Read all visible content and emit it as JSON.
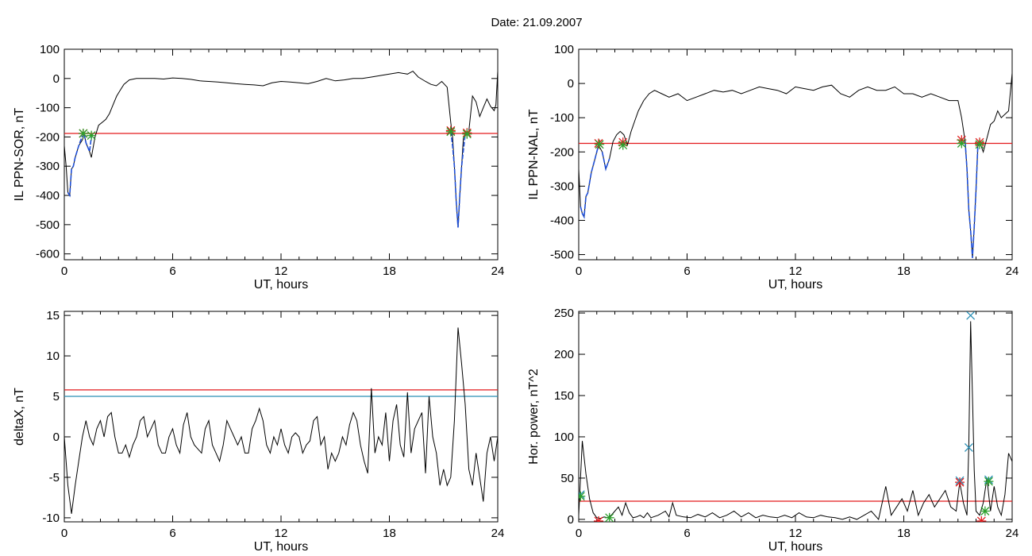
{
  "title": "Date:  21.09.2007",
  "colors": {
    "trace": "#000000",
    "red": "#e31a1c",
    "blue": "#1f4fd8",
    "cyan": "#2a8fb5",
    "green": "#2ca02c",
    "marker_blue": "#3a6fd8"
  },
  "chart_data": [
    {
      "type": "line",
      "id": "sor",
      "xlabel": "UT, hours",
      "ylabel": "IL PPN-SOR, nT",
      "xlim": [
        0,
        24
      ],
      "ylim": [
        -620,
        100
      ],
      "xticks": [
        0,
        6,
        12,
        18,
        24
      ],
      "yticks": [
        100,
        0,
        -100,
        -200,
        -300,
        -400,
        -500,
        -600
      ],
      "hlines": [
        {
          "y": -188,
          "color": "red"
        }
      ],
      "series": [
        {
          "x": [
            0,
            0.1,
            0.2,
            0.3,
            0.4,
            0.5,
            0.6,
            0.8,
            1.0,
            1.1,
            1.2,
            1.4,
            1.5,
            1.7,
            1.9,
            2.1,
            2.3,
            2.5,
            2.7,
            2.9,
            3.1,
            3.3,
            3.6,
            4.0,
            4.5,
            5.0,
            5.5,
            6.0,
            6.5,
            7.0,
            7.5,
            8.0,
            8.5,
            9.0,
            9.5,
            10.0,
            10.5,
            11.0,
            11.5,
            12.0,
            12.5,
            13.0,
            13.5,
            14.0,
            14.5,
            15.0,
            15.5,
            16.0,
            16.5,
            17.0,
            17.5,
            18.0,
            18.5,
            19.0,
            19.3,
            19.6,
            20.0,
            20.3,
            20.6,
            20.9,
            21.2,
            21.4,
            21.5,
            21.6,
            21.7,
            21.8,
            21.9,
            22.0,
            22.1,
            22.2,
            22.4,
            22.6,
            22.8,
            23.0,
            23.2,
            23.4,
            23.6,
            23.8,
            23.9,
            24.0
          ],
          "y": [
            -230,
            -300,
            -390,
            -400,
            -310,
            -300,
            -270,
            -230,
            -210,
            -190,
            -220,
            -250,
            -270,
            -200,
            -160,
            -150,
            -140,
            -120,
            -90,
            -60,
            -40,
            -20,
            -5,
            0,
            0,
            0,
            -2,
            2,
            0,
            -3,
            -8,
            -10,
            -12,
            -15,
            -18,
            -20,
            -22,
            -25,
            -15,
            -10,
            -12,
            -15,
            -18,
            -10,
            0,
            -8,
            -5,
            0,
            0,
            5,
            10,
            15,
            20,
            15,
            25,
            5,
            -10,
            -20,
            -25,
            -10,
            -30,
            -150,
            -200,
            -300,
            -420,
            -510,
            -400,
            -300,
            -200,
            -190,
            -180,
            -60,
            -80,
            -130,
            -100,
            -70,
            -95,
            -110,
            -90,
            25
          ],
          "color": "trace"
        }
      ],
      "blue_segments": [
        {
          "x": [
            0.2,
            0.3,
            0.4,
            0.5,
            0.6,
            0.8,
            1.0
          ],
          "y": [
            -390,
            -400,
            -310,
            -300,
            -270,
            -230,
            -195
          ]
        },
        {
          "x": [
            1.1,
            1.2,
            1.4,
            1.5
          ],
          "y": [
            -190,
            -220,
            -250,
            -200
          ]
        },
        {
          "x": [
            21.4,
            21.5,
            21.6,
            21.7,
            21.8,
            21.9,
            22.0,
            22.2
          ],
          "y": [
            -180,
            -230,
            -300,
            -420,
            -510,
            -400,
            -300,
            -190
          ]
        }
      ],
      "markers": [
        {
          "x": 1.05,
          "y": -188,
          "color": "red"
        },
        {
          "x": 1.05,
          "y": -188,
          "color": "green"
        },
        {
          "x": 1.5,
          "y": -195,
          "color": "green"
        },
        {
          "x": 21.4,
          "y": -178,
          "color": "red"
        },
        {
          "x": 21.4,
          "y": -182,
          "color": "green"
        },
        {
          "x": 22.3,
          "y": -186,
          "color": "red"
        },
        {
          "x": 22.3,
          "y": -190,
          "color": "green"
        }
      ]
    },
    {
      "type": "line",
      "id": "nal",
      "xlabel": "UT, hours",
      "ylabel": "IL PPN-NAL, nT",
      "xlim": [
        0,
        24
      ],
      "ylim": [
        -515,
        100
      ],
      "xticks": [
        0,
        6,
        12,
        18,
        24
      ],
      "yticks": [
        100,
        0,
        -100,
        -200,
        -300,
        -400,
        -500
      ],
      "hlines": [
        {
          "y": -175,
          "color": "red"
        }
      ],
      "series": [
        {
          "x": [
            0,
            0.1,
            0.2,
            0.3,
            0.4,
            0.5,
            0.7,
            0.9,
            1.1,
            1.3,
            1.5,
            1.7,
            1.9,
            2.1,
            2.3,
            2.5,
            2.7,
            2.9,
            3.1,
            3.3,
            3.6,
            3.9,
            4.2,
            4.6,
            5.0,
            5.5,
            6.0,
            6.5,
            7.0,
            7.5,
            8.0,
            8.5,
            9.0,
            9.5,
            10.0,
            10.5,
            11.0,
            11.5,
            12.0,
            12.5,
            13.0,
            13.5,
            14.0,
            14.5,
            15.0,
            15.5,
            16.0,
            16.5,
            17.0,
            17.5,
            18.0,
            18.5,
            19.0,
            19.5,
            20.0,
            20.5,
            21.0,
            21.2,
            21.4,
            21.5,
            21.6,
            21.7,
            21.8,
            21.9,
            22.0,
            22.1,
            22.2,
            22.4,
            22.6,
            22.8,
            23.0,
            23.2,
            23.4,
            23.6,
            23.8,
            24.0
          ],
          "y": [
            -250,
            -360,
            -380,
            -390,
            -330,
            -320,
            -260,
            -220,
            -180,
            -200,
            -250,
            -220,
            -170,
            -150,
            -140,
            -150,
            -180,
            -140,
            -110,
            -80,
            -50,
            -30,
            -20,
            -30,
            -40,
            -30,
            -50,
            -40,
            -30,
            -20,
            -25,
            -20,
            -30,
            -20,
            -10,
            -15,
            -20,
            -30,
            -10,
            -15,
            -20,
            -10,
            -5,
            -30,
            -40,
            -20,
            -10,
            -20,
            -20,
            -10,
            -30,
            -30,
            -40,
            -30,
            -40,
            -50,
            -50,
            -100,
            -170,
            -250,
            -370,
            -430,
            -510,
            -420,
            -310,
            -180,
            -170,
            -200,
            -160,
            -120,
            -110,
            -80,
            -100,
            -90,
            -80,
            30
          ],
          "color": "trace"
        }
      ],
      "blue_segments": [
        {
          "x": [
            0.1,
            0.2,
            0.3,
            0.4,
            0.5,
            0.7,
            0.9,
            1.1
          ],
          "y": [
            -360,
            -380,
            -390,
            -330,
            -320,
            -260,
            -220,
            -180
          ]
        },
        {
          "x": [
            1.3,
            1.5,
            1.7
          ],
          "y": [
            -200,
            -250,
            -220
          ]
        },
        {
          "x": [
            21.4,
            21.5,
            21.6,
            21.7,
            21.8,
            21.9,
            22.0,
            22.1
          ],
          "y": [
            -170,
            -250,
            -370,
            -430,
            -510,
            -420,
            -310,
            -180
          ]
        }
      ],
      "markers": [
        {
          "x": 1.1,
          "y": -175,
          "color": "red"
        },
        {
          "x": 1.15,
          "y": -178,
          "color": "green"
        },
        {
          "x": 2.45,
          "y": -172,
          "color": "red"
        },
        {
          "x": 2.45,
          "y": -180,
          "color": "green"
        },
        {
          "x": 21.2,
          "y": -165,
          "color": "red"
        },
        {
          "x": 21.2,
          "y": -175,
          "color": "green"
        },
        {
          "x": 22.2,
          "y": -172,
          "color": "red"
        },
        {
          "x": 22.2,
          "y": -178,
          "color": "green"
        }
      ]
    },
    {
      "type": "line",
      "id": "deltax",
      "xlabel": "UT, hours",
      "ylabel": "deltaX, nT",
      "xlim": [
        0,
        24
      ],
      "ylim": [
        -10.5,
        15.5
      ],
      "xticks": [
        0,
        6,
        12,
        18,
        24
      ],
      "yticks": [
        15,
        10,
        5,
        0,
        -5,
        -10
      ],
      "hlines": [
        {
          "y": 5.8,
          "color": "red"
        },
        {
          "y": 5.0,
          "color": "cyan"
        }
      ],
      "series": [
        {
          "x": [
            0,
            0.2,
            0.4,
            0.6,
            0.8,
            1.0,
            1.2,
            1.4,
            1.6,
            1.8,
            2.0,
            2.2,
            2.4,
            2.6,
            2.8,
            3.0,
            3.2,
            3.4,
            3.6,
            3.8,
            4.0,
            4.2,
            4.4,
            4.6,
            4.8,
            5.0,
            5.2,
            5.4,
            5.6,
            5.8,
            6.0,
            6.2,
            6.4,
            6.6,
            6.8,
            7.0,
            7.2,
            7.4,
            7.6,
            7.8,
            8.0,
            8.2,
            8.4,
            8.6,
            8.8,
            9.0,
            9.2,
            9.4,
            9.6,
            9.8,
            10.0,
            10.2,
            10.4,
            10.6,
            10.8,
            11.0,
            11.2,
            11.4,
            11.6,
            11.8,
            12.0,
            12.2,
            12.4,
            12.6,
            12.8,
            13.0,
            13.2,
            13.4,
            13.6,
            13.8,
            14.0,
            14.2,
            14.4,
            14.6,
            14.8,
            15.0,
            15.2,
            15.4,
            15.6,
            15.8,
            16.0,
            16.2,
            16.4,
            16.6,
            16.8,
            17.0,
            17.2,
            17.4,
            17.6,
            17.8,
            18.0,
            18.2,
            18.4,
            18.6,
            18.8,
            19.0,
            19.2,
            19.4,
            19.6,
            19.8,
            20.0,
            20.2,
            20.4,
            20.6,
            20.8,
            21.0,
            21.2,
            21.4,
            21.6,
            21.8,
            22.0,
            22.2,
            22.4,
            22.6,
            22.8,
            23.0,
            23.2,
            23.4,
            23.6,
            23.8,
            24.0
          ],
          "y": [
            0,
            -6,
            -9.5,
            -6,
            -3,
            0,
            2,
            0,
            -1,
            1,
            2,
            0,
            2.5,
            3,
            0,
            -2,
            -2,
            -1,
            -2.5,
            -1,
            0,
            2,
            2.5,
            0,
            1,
            2,
            -1,
            -2,
            -2,
            0,
            1,
            -1,
            -2,
            1.5,
            3,
            0,
            -1,
            -1.5,
            -2,
            1,
            2,
            -1,
            -2,
            -3,
            -1,
            2,
            1,
            0,
            -1,
            0,
            -2,
            -2,
            1,
            2,
            3.5,
            2,
            -1,
            -2,
            0,
            -1,
            1,
            -1,
            -2,
            0,
            0.5,
            0,
            -2,
            -1,
            -0.5,
            2,
            2.5,
            -1,
            0,
            -4,
            -2,
            -3,
            -2,
            0,
            -1,
            1.5,
            3,
            2,
            -1,
            -3,
            -4.5,
            6,
            -2,
            0,
            -1,
            3,
            -3,
            2,
            4,
            -1,
            -2.5,
            5.5,
            -2,
            1,
            2,
            3,
            -4.5,
            5,
            0,
            -2,
            -6,
            -4,
            -6,
            -5,
            2,
            13.5,
            9,
            4,
            -4,
            -6,
            -2,
            -5,
            -8,
            -2,
            0,
            -3,
            0
          ],
          "color": "trace"
        }
      ]
    },
    {
      "type": "line",
      "id": "horpower",
      "xlabel": "UT, hours",
      "ylabel": "Hor. power, nT^2",
      "xlim": [
        0,
        24
      ],
      "ylim": [
        -3,
        252
      ],
      "xticks": [
        0,
        6,
        12,
        18,
        24
      ],
      "yticks": [
        250,
        200,
        150,
        100,
        50,
        0
      ],
      "hlines": [
        {
          "y": 22,
          "color": "red"
        }
      ],
      "series": [
        {
          "x": [
            0,
            0.2,
            0.4,
            0.6,
            0.8,
            1.0,
            1.2,
            1.4,
            1.6,
            1.8,
            2.0,
            2.2,
            2.4,
            2.6,
            2.8,
            3.0,
            3.2,
            3.4,
            3.6,
            3.8,
            4.0,
            4.4,
            4.8,
            5.0,
            5.2,
            5.4,
            5.8,
            6.2,
            6.6,
            7.0,
            7.4,
            7.8,
            8.2,
            8.6,
            9.0,
            9.4,
            9.8,
            10.2,
            10.6,
            11.0,
            11.4,
            11.8,
            12.2,
            12.6,
            13.0,
            13.4,
            13.8,
            14.2,
            14.6,
            15.0,
            15.4,
            15.8,
            16.2,
            16.6,
            17.0,
            17.3,
            17.6,
            17.9,
            18.2,
            18.5,
            18.8,
            19.1,
            19.4,
            19.7,
            20.0,
            20.3,
            20.6,
            20.9,
            21.1,
            21.3,
            21.5,
            21.6,
            21.7,
            21.8,
            21.9,
            22.0,
            22.2,
            22.4,
            22.6,
            22.8,
            23.0,
            23.2,
            23.4,
            23.6,
            23.8,
            24.0
          ],
          "y": [
            5,
            95,
            55,
            25,
            8,
            2,
            1,
            3,
            2,
            5,
            10,
            15,
            5,
            20,
            8,
            2,
            3,
            5,
            2,
            8,
            2,
            5,
            10,
            3,
            20,
            5,
            3,
            2,
            6,
            3,
            8,
            2,
            5,
            10,
            3,
            8,
            2,
            5,
            3,
            2,
            5,
            2,
            8,
            3,
            2,
            5,
            3,
            2,
            0,
            3,
            0,
            5,
            10,
            0,
            40,
            5,
            15,
            25,
            10,
            35,
            5,
            20,
            30,
            15,
            25,
            35,
            15,
            10,
            45,
            20,
            5,
            90,
            240,
            150,
            60,
            10,
            5,
            20,
            50,
            10,
            40,
            15,
            5,
            30,
            80,
            70
          ],
          "color": "trace"
        }
      ],
      "markers": [
        {
          "x": 0.1,
          "y": 30,
          "color": "cyan"
        },
        {
          "x": 0.1,
          "y": 28,
          "color": "green"
        },
        {
          "x": 1.1,
          "y": -2,
          "color": "red"
        },
        {
          "x": 1.7,
          "y": 2,
          "color": "green"
        },
        {
          "x": 21.1,
          "y": 45,
          "color": "red"
        },
        {
          "x": 21.1,
          "y": 47,
          "color": "cyan"
        },
        {
          "x": 21.6,
          "y": 87,
          "color": "cyan"
        },
        {
          "x": 21.7,
          "y": 247,
          "color": "cyan"
        },
        {
          "x": 22.3,
          "y": -2,
          "color": "red"
        },
        {
          "x": 22.7,
          "y": 48,
          "color": "cyan"
        },
        {
          "x": 22.7,
          "y": 46,
          "color": "green"
        },
        {
          "x": 22.5,
          "y": 10,
          "color": "green"
        }
      ]
    }
  ]
}
